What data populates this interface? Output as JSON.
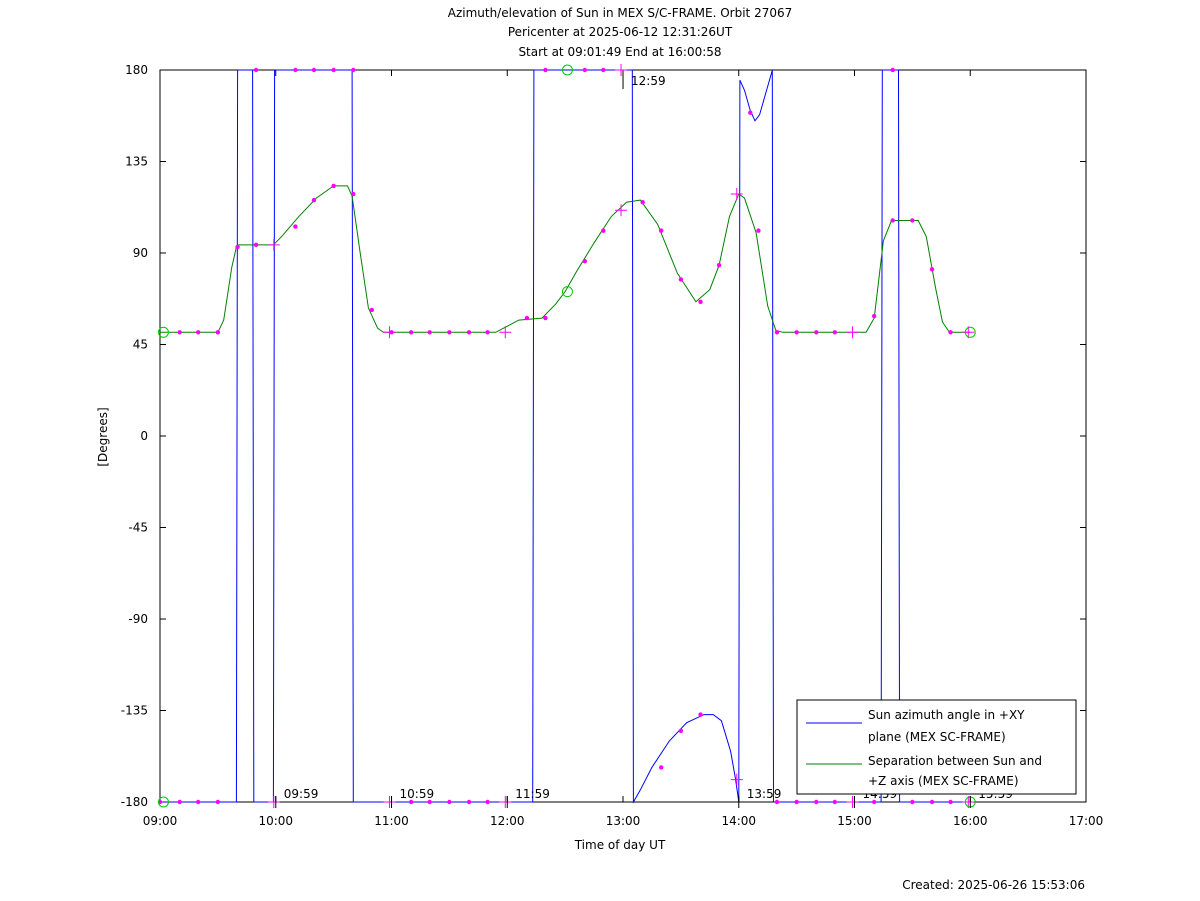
{
  "chart_data": {
    "type": "line",
    "title_lines": [
      "Azimuth/elevation of Sun in MEX S/C-FRAME.  Orbit 27067",
      "Pericenter at 2025-06-12 12:31:26UT",
      "Start at 09:01:49 End at 16:00:58"
    ],
    "xlabel": "Time of day UT",
    "ylabel": "[Degrees]",
    "xlim": [
      9,
      17
    ],
    "ylim": [
      -180,
      180
    ],
    "x_ticks": [
      {
        "v": 9,
        "label": "09:00"
      },
      {
        "v": 10,
        "label": "10:00"
      },
      {
        "v": 11,
        "label": "11:00"
      },
      {
        "v": 12,
        "label": "12:00"
      },
      {
        "v": 13,
        "label": "13:00"
      },
      {
        "v": 14,
        "label": "14:00"
      },
      {
        "v": 15,
        "label": "15:00"
      },
      {
        "v": 16,
        "label": "16:00"
      },
      {
        "v": 17,
        "label": "17:00"
      }
    ],
    "y_ticks": [
      {
        "v": 180,
        "label": "180"
      },
      {
        "v": 135,
        "label": "135"
      },
      {
        "v": 90,
        "label": "90"
      },
      {
        "v": 45,
        "label": "45"
      },
      {
        "v": 0,
        "label": "0"
      },
      {
        "v": -45,
        "label": "-45"
      },
      {
        "v": -90,
        "label": "-90"
      },
      {
        "v": -135,
        "label": "-135"
      },
      {
        "v": -180,
        "label": "-180"
      }
    ],
    "hour_marks": [
      {
        "x": 9.983,
        "y": -180,
        "label": "09:59"
      },
      {
        "x": 10.983,
        "y": -180,
        "label": "10:59"
      },
      {
        "x": 11.983,
        "y": -180,
        "label": "11:59"
      },
      {
        "x": 12.983,
        "y": 180,
        "label": "12:59"
      },
      {
        "x": 13.983,
        "y": -180,
        "label": "13:59"
      },
      {
        "x": 14.983,
        "y": -180,
        "label": "14:59"
      },
      {
        "x": 15.983,
        "y": -180,
        "label": "15:59"
      }
    ],
    "series": [
      {
        "name": "Sun azimuth angle in +XY plane (MEX SC-FRAME)",
        "legend_lines": [
          "Sun azimuth angle in +XY",
          "plane (MEX SC-FRAME)"
        ],
        "color": "#0000ff",
        "points": [
          [
            9.0,
            -180
          ],
          [
            9.66,
            -180
          ],
          [
            9.67,
            180
          ],
          [
            9.8,
            180
          ],
          [
            9.81,
            -180
          ],
          [
            9.98,
            -180
          ],
          [
            9.99,
            180
          ],
          [
            10.66,
            180
          ],
          [
            10.67,
            -180
          ],
          [
            12.22,
            -180
          ],
          [
            12.23,
            180
          ],
          [
            13.08,
            180
          ],
          [
            13.09,
            -180
          ],
          [
            13.15,
            -174
          ],
          [
            13.25,
            -163
          ],
          [
            13.4,
            -150
          ],
          [
            13.55,
            -141
          ],
          [
            13.7,
            -137
          ],
          [
            13.78,
            -137
          ],
          [
            13.85,
            -140
          ],
          [
            13.93,
            -155
          ],
          [
            13.97,
            -168
          ],
          [
            14.0,
            -180
          ],
          [
            14.01,
            175
          ],
          [
            14.05,
            170
          ],
          [
            14.1,
            160
          ],
          [
            14.14,
            155
          ],
          [
            14.18,
            158
          ],
          [
            14.23,
            168
          ],
          [
            14.28,
            178
          ],
          [
            14.29,
            180
          ],
          [
            14.3,
            -180
          ],
          [
            15.23,
            -180
          ],
          [
            15.24,
            180
          ],
          [
            15.38,
            180
          ],
          [
            15.39,
            -180
          ],
          [
            16.0,
            -180
          ]
        ]
      },
      {
        "name": "Separation between Sun and +Z axis (MEX SC-FRAME)",
        "legend_lines": [
          "Separation between Sun and",
          "+Z axis (MEX SC-FRAME)"
        ],
        "color": "#008000",
        "points": [
          [
            9.0,
            51
          ],
          [
            9.5,
            51
          ],
          [
            9.55,
            57
          ],
          [
            9.62,
            83
          ],
          [
            9.66,
            93
          ],
          [
            9.68,
            94
          ],
          [
            9.98,
            94
          ],
          [
            10.05,
            98
          ],
          [
            10.2,
            108
          ],
          [
            10.35,
            117
          ],
          [
            10.5,
            123
          ],
          [
            10.62,
            123
          ],
          [
            10.66,
            118
          ],
          [
            10.73,
            90
          ],
          [
            10.8,
            63
          ],
          [
            10.88,
            53
          ],
          [
            10.93,
            51
          ],
          [
            11.9,
            51
          ],
          [
            12.0,
            54
          ],
          [
            12.1,
            57
          ],
          [
            12.3,
            58
          ],
          [
            12.42,
            65
          ],
          [
            12.5,
            71
          ],
          [
            12.6,
            81
          ],
          [
            12.75,
            95
          ],
          [
            12.9,
            108
          ],
          [
            13.03,
            115
          ],
          [
            13.15,
            116
          ],
          [
            13.3,
            104
          ],
          [
            13.47,
            80
          ],
          [
            13.63,
            66
          ],
          [
            13.75,
            72
          ],
          [
            13.83,
            84
          ],
          [
            13.92,
            108
          ],
          [
            14.0,
            119
          ],
          [
            14.05,
            117
          ],
          [
            14.15,
            100
          ],
          [
            14.25,
            64
          ],
          [
            14.32,
            52
          ],
          [
            14.38,
            51
          ],
          [
            15.1,
            51
          ],
          [
            15.17,
            58
          ],
          [
            15.25,
            96
          ],
          [
            15.32,
            106
          ],
          [
            15.55,
            106
          ],
          [
            15.62,
            98
          ],
          [
            15.7,
            73
          ],
          [
            15.76,
            56
          ],
          [
            15.82,
            51
          ],
          [
            16.0,
            51
          ]
        ]
      }
    ],
    "markers": {
      "color": "#ff00ff",
      "dots": [
        [
          9.0,
          -180
        ],
        [
          9.17,
          -180
        ],
        [
          9.33,
          -180
        ],
        [
          9.5,
          -180
        ],
        [
          9.83,
          180
        ],
        [
          10.17,
          180
        ],
        [
          10.33,
          180
        ],
        [
          10.5,
          180
        ],
        [
          10.67,
          180
        ],
        [
          11.17,
          -180
        ],
        [
          11.33,
          -180
        ],
        [
          11.5,
          -180
        ],
        [
          11.67,
          -180
        ],
        [
          11.83,
          -180
        ],
        [
          12.33,
          180
        ],
        [
          12.67,
          180
        ],
        [
          12.83,
          180
        ],
        [
          13.33,
          -163
        ],
        [
          13.5,
          -145
        ],
        [
          13.67,
          -137
        ],
        [
          14.1,
          159
        ],
        [
          14.33,
          -180
        ],
        [
          14.5,
          -180
        ],
        [
          14.67,
          -180
        ],
        [
          14.83,
          -180
        ],
        [
          15.33,
          180
        ],
        [
          15.17,
          -180
        ],
        [
          15.5,
          -180
        ],
        [
          15.67,
          -180
        ],
        [
          15.83,
          -180
        ],
        [
          9.17,
          51
        ],
        [
          9.33,
          51
        ],
        [
          9.5,
          51
        ],
        [
          9.67,
          93
        ],
        [
          9.83,
          94
        ],
        [
          10.17,
          103
        ],
        [
          10.33,
          116
        ],
        [
          10.5,
          123
        ],
        [
          10.67,
          119
        ],
        [
          10.83,
          62
        ],
        [
          11.0,
          51
        ],
        [
          11.17,
          51
        ],
        [
          11.33,
          51
        ],
        [
          11.5,
          51
        ],
        [
          11.67,
          51
        ],
        [
          11.83,
          51
        ],
        [
          12.17,
          58
        ],
        [
          12.33,
          58
        ],
        [
          12.67,
          86
        ],
        [
          12.83,
          101
        ],
        [
          13.17,
          115
        ],
        [
          13.33,
          101
        ],
        [
          13.5,
          77
        ],
        [
          13.67,
          66
        ],
        [
          13.83,
          84
        ],
        [
          14.17,
          101
        ],
        [
          14.33,
          51
        ],
        [
          14.5,
          51
        ],
        [
          14.67,
          51
        ],
        [
          14.83,
          51
        ],
        [
          15.17,
          59
        ],
        [
          15.33,
          106
        ],
        [
          15.5,
          106
        ],
        [
          15.67,
          82
        ],
        [
          15.83,
          51
        ]
      ],
      "pluses": [
        [
          9.983,
          94
        ],
        [
          10.983,
          51
        ],
        [
          11.983,
          51
        ],
        [
          12.983,
          111
        ],
        [
          13.983,
          119
        ],
        [
          14.983,
          51
        ],
        [
          15.983,
          51
        ],
        [
          9.983,
          -180
        ],
        [
          10.983,
          -180
        ],
        [
          11.983,
          -180
        ],
        [
          12.983,
          180
        ],
        [
          13.983,
          -169
        ],
        [
          14.983,
          -180
        ],
        [
          15.983,
          -180
        ]
      ],
      "circle_color": "#00cc00",
      "circles": [
        [
          9.03,
          51
        ],
        [
          9.03,
          -180
        ],
        [
          12.52,
          180
        ],
        [
          12.52,
          71
        ],
        [
          16.0,
          51
        ],
        [
          16.0,
          -180
        ]
      ]
    },
    "legend_position": "bottom-right",
    "grid": false
  },
  "footer": {
    "created": "Created: 2025-06-26 15:53:06"
  }
}
